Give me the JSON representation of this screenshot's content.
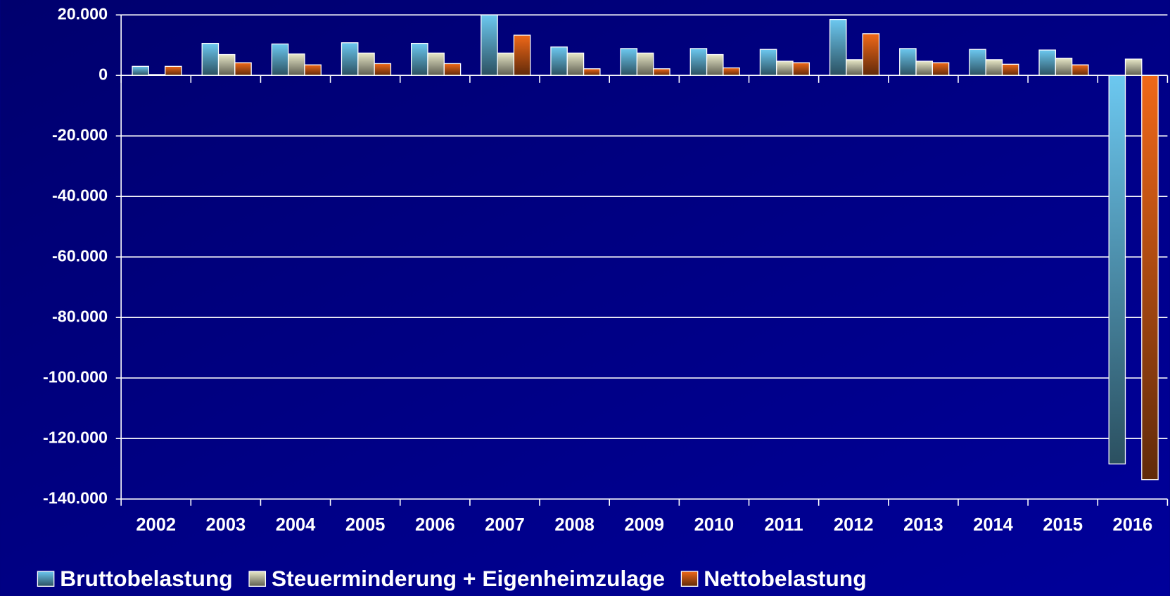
{
  "chart_data": {
    "type": "bar",
    "categories": [
      "2002",
      "2003",
      "2004",
      "2005",
      "2006",
      "2007",
      "2008",
      "2009",
      "2010",
      "2011",
      "2012",
      "2013",
      "2014",
      "2015",
      "2016"
    ],
    "series": [
      {
        "name": "Bruttobelastung",
        "color": "#6cc8f0",
        "values": [
          3000,
          10600,
          10400,
          10800,
          10600,
          20000,
          9400,
          8900,
          8900,
          8600,
          18500,
          8900,
          8600,
          8400,
          -128400
        ]
      },
      {
        "name": "Steuerminderung + Eigenheimzulage",
        "color": "#e8e8c8",
        "values": [
          300,
          6900,
          7100,
          7400,
          7400,
          7400,
          7400,
          7400,
          6900,
          4700,
          5200,
          4700,
          5200,
          5700,
          5400
        ]
      },
      {
        "name": "Nettobelastung",
        "color": "#f06818",
        "values": [
          3000,
          4200,
          3500,
          3900,
          3900,
          13300,
          2200,
          2200,
          2500,
          4200,
          13800,
          4200,
          3700,
          3500,
          -133600
        ]
      }
    ],
    "ylim": [
      -140000,
      20000
    ],
    "yticks": [
      {
        "value": -140000,
        "label": "-140.000"
      },
      {
        "value": -120000,
        "label": "-120.000"
      },
      {
        "value": -100000,
        "label": "-100.000"
      },
      {
        "value": -80000,
        "label": "-80.000"
      },
      {
        "value": -60000,
        "label": "-60.000"
      },
      {
        "value": -40000,
        "label": "-40.000"
      },
      {
        "value": -20000,
        "label": "-20.000"
      },
      0,
      {
        "value": 20000,
        "label": "20.000"
      }
    ],
    "grid": true,
    "legend": "bottom"
  }
}
